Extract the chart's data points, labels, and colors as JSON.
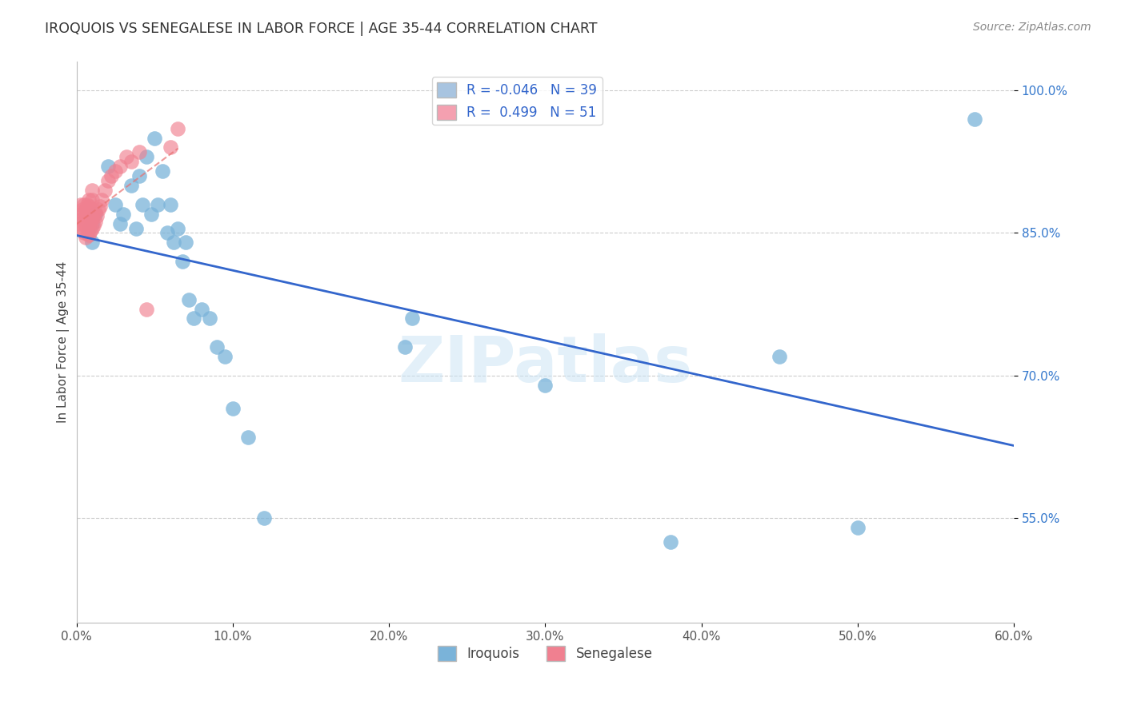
{
  "title": "IROQUOIS VS SENEGALESE IN LABOR FORCE | AGE 35-44 CORRELATION CHART",
  "source": "Source: ZipAtlas.com",
  "ylabel": "In Labor Force | Age 35-44",
  "xlim": [
    0.0,
    0.6
  ],
  "ylim": [
    0.44,
    1.03
  ],
  "xtick_labels": [
    "0.0%",
    "10.0%",
    "20.0%",
    "30.0%",
    "40.0%",
    "50.0%",
    "60.0%"
  ],
  "xtick_vals": [
    0.0,
    0.1,
    0.2,
    0.3,
    0.4,
    0.5,
    0.6
  ],
  "ytick_labels": [
    "55.0%",
    "70.0%",
    "85.0%",
    "100.0%"
  ],
  "ytick_vals": [
    0.55,
    0.7,
    0.85,
    1.0
  ],
  "legend_label1": "R = -0.046   N = 39",
  "legend_label2": "R =  0.499   N = 51",
  "legend_color1": "#a8c4e0",
  "legend_color2": "#f4a0b0",
  "iroquois_color": "#7ab3d9",
  "senegalese_color": "#f08090",
  "trendline_iroquois_color": "#3366cc",
  "trendline_senegalese_color": "#e87070",
  "watermark": "ZIPatlas",
  "iroquois_x": [
    0.008,
    0.01,
    0.01,
    0.012,
    0.02,
    0.025,
    0.028,
    0.03,
    0.035,
    0.038,
    0.04,
    0.042,
    0.045,
    0.048,
    0.05,
    0.052,
    0.055,
    0.058,
    0.06,
    0.062,
    0.065,
    0.068,
    0.07,
    0.072,
    0.075,
    0.08,
    0.085,
    0.09,
    0.095,
    0.1,
    0.11,
    0.12,
    0.21,
    0.215,
    0.3,
    0.38,
    0.45,
    0.5,
    0.575
  ],
  "iroquois_y": [
    0.855,
    0.86,
    0.84,
    0.87,
    0.92,
    0.88,
    0.86,
    0.87,
    0.9,
    0.855,
    0.91,
    0.88,
    0.93,
    0.87,
    0.95,
    0.88,
    0.915,
    0.85,
    0.88,
    0.84,
    0.855,
    0.82,
    0.84,
    0.78,
    0.76,
    0.77,
    0.76,
    0.73,
    0.72,
    0.665,
    0.635,
    0.55,
    0.73,
    0.76,
    0.69,
    0.525,
    0.72,
    0.54,
    0.97
  ],
  "senegalese_x": [
    0.002,
    0.003,
    0.003,
    0.004,
    0.004,
    0.004,
    0.005,
    0.005,
    0.005,
    0.005,
    0.006,
    0.006,
    0.006,
    0.006,
    0.007,
    0.007,
    0.007,
    0.007,
    0.007,
    0.008,
    0.008,
    0.008,
    0.008,
    0.008,
    0.009,
    0.009,
    0.009,
    0.01,
    0.01,
    0.01,
    0.01,
    0.01,
    0.011,
    0.011,
    0.012,
    0.012,
    0.013,
    0.014,
    0.015,
    0.016,
    0.018,
    0.02,
    0.022,
    0.025,
    0.028,
    0.032,
    0.035,
    0.04,
    0.045,
    0.06,
    0.065
  ],
  "senegalese_y": [
    0.86,
    0.87,
    0.88,
    0.855,
    0.865,
    0.875,
    0.85,
    0.86,
    0.87,
    0.88,
    0.845,
    0.858,
    0.865,
    0.875,
    0.85,
    0.86,
    0.87,
    0.88,
    0.855,
    0.848,
    0.858,
    0.868,
    0.878,
    0.885,
    0.852,
    0.862,
    0.872,
    0.855,
    0.865,
    0.875,
    0.885,
    0.895,
    0.858,
    0.868,
    0.862,
    0.872,
    0.868,
    0.875,
    0.878,
    0.885,
    0.895,
    0.905,
    0.91,
    0.915,
    0.92,
    0.93,
    0.925,
    0.935,
    0.77,
    0.94,
    0.96
  ]
}
